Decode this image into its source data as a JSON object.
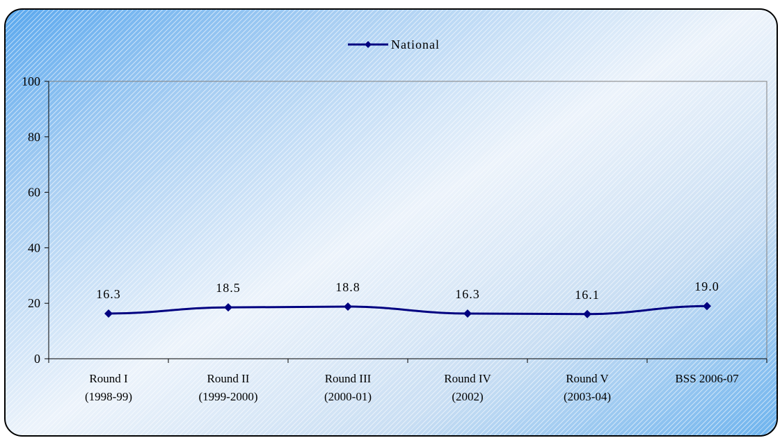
{
  "chart_data": {
    "type": "line",
    "categories": [
      [
        "Round I",
        "(1998-99)"
      ],
      [
        "Round  II",
        "(1999-2000)"
      ],
      [
        "Round III",
        "(2000-01)"
      ],
      [
        "Round IV",
        "(2002)"
      ],
      [
        "Round V",
        "(2003-04)"
      ],
      [
        "BSS 2006-07"
      ]
    ],
    "series": [
      {
        "name": "National",
        "values": [
          16.3,
          18.5,
          18.8,
          16.3,
          16.1,
          19.0
        ],
        "labels": [
          "16.3",
          "18.5",
          "18.8",
          "16.3",
          "16.1",
          "19.0"
        ],
        "color": "#000080"
      }
    ],
    "yticks": [
      "0",
      "20",
      "40",
      "60",
      "80",
      "100"
    ],
    "ylim": [
      0,
      100
    ],
    "grid": false,
    "legend": "top-center"
  }
}
